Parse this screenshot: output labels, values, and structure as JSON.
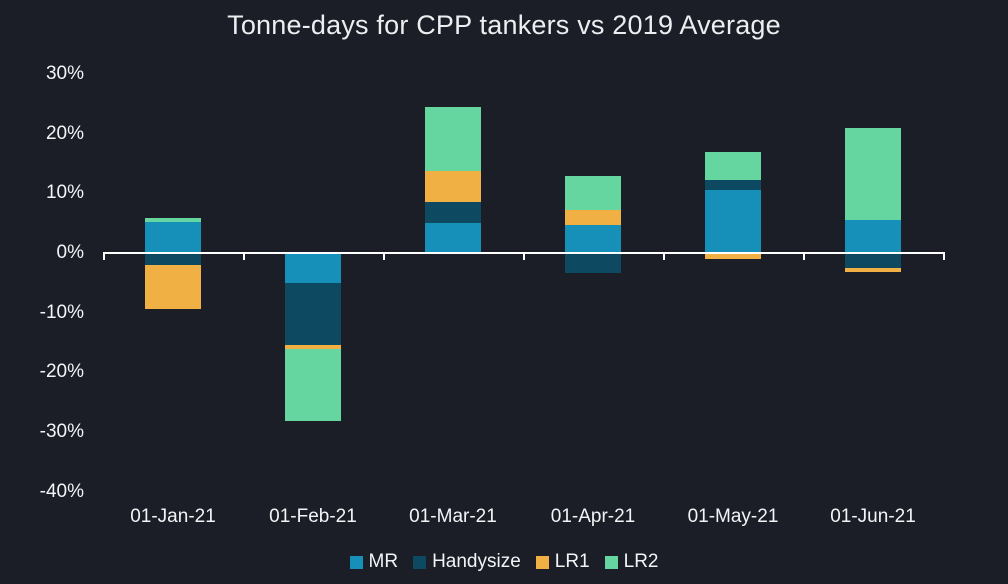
{
  "title": "Tonne-days for CPP tankers vs 2019 Average",
  "colors": {
    "background": "#1b1e27",
    "axis_line": "#ffffff",
    "text": "#f2f4f6",
    "title_text": "#eceef0"
  },
  "chart_data": {
    "type": "bar",
    "stacked": true,
    "title": "Tonne-days for CPP tankers vs 2019 Average",
    "categories": [
      "01-Jan-21",
      "01-Feb-21",
      "01-Mar-21",
      "01-Apr-21",
      "01-May-21",
      "01-Jun-21"
    ],
    "series": [
      {
        "name": "MR",
        "color": "#1790b9",
        "values": [
          5.2,
          -5.1,
          5.1,
          4.7,
          10.6,
          5.5
        ]
      },
      {
        "name": "Handysize",
        "color": "#0d4a61",
        "values": [
          -2.0,
          -10.3,
          3.5,
          -3.4,
          1.7,
          -2.5
        ]
      },
      {
        "name": "LR1",
        "color": "#f0b043",
        "values": [
          -7.4,
          -0.7,
          5.1,
          2.5,
          -1.0,
          -0.6
        ]
      },
      {
        "name": "LR2",
        "color": "#65d6a0",
        "values": [
          0.7,
          -12.0,
          10.8,
          5.7,
          4.7,
          15.5
        ]
      }
    ],
    "ytick_values": [
      30,
      20,
      10,
      0,
      -10,
      -20,
      -30,
      -40
    ],
    "ytick_labels": [
      "30%",
      "20%",
      "10%",
      "0%",
      "-10%",
      "-20%",
      "-30%",
      "-40%"
    ],
    "ylim": [
      -40,
      30
    ],
    "value_unit": "%",
    "grid": false,
    "legend_position": "bottom"
  }
}
